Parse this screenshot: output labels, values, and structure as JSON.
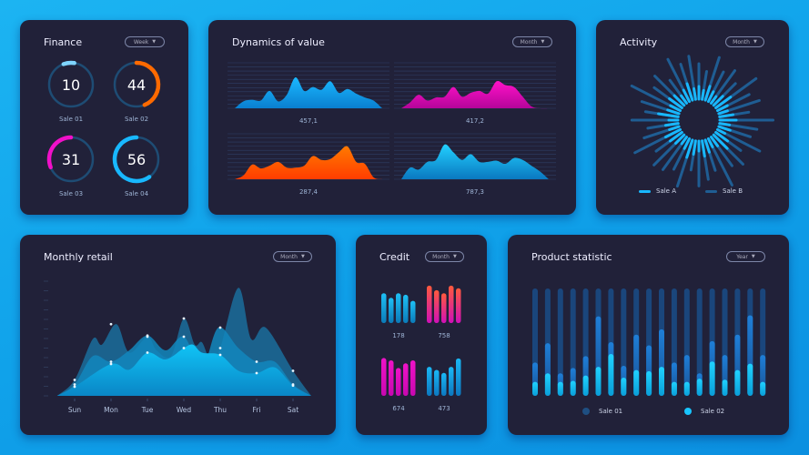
{
  "colors": {
    "panel": "#212139",
    "blue": "#18c5ff",
    "orange": "#ff6a00",
    "magenta": "#f010c8",
    "light_blue": "#7fd4ff",
    "dim_blue": "#1f5d93"
  },
  "finance": {
    "title": "Finance",
    "dropdown": "Week",
    "rings": [
      {
        "value": "10",
        "label": "Sale 01",
        "percent": 8,
        "color": "#7fd4ff",
        "dir": 1,
        "start": -20
      },
      {
        "value": "44",
        "label": "Sale 02",
        "percent": 44,
        "color": "#ff6a00",
        "dir": 1,
        "start": 0
      },
      {
        "value": "31",
        "label": "Sale 03",
        "percent": 31,
        "color": "#f010c8",
        "dir": -1,
        "start": 0
      },
      {
        "value": "56",
        "label": "Sale 04",
        "percent": 60,
        "color": "#18b8ff",
        "dir": -1,
        "start": 0
      }
    ]
  },
  "dynamics": {
    "title": "Dynamics of value",
    "dropdown": "Month",
    "charts": [
      {
        "value": "457,1",
        "colors": [
          "#1ab8ff",
          "#0a7fd0"
        ],
        "values": [
          0,
          18,
          22,
          20,
          45,
          18,
          35,
          80,
          45,
          55,
          48,
          70,
          40,
          50,
          38,
          28,
          20,
          0
        ]
      },
      {
        "value": "417,2",
        "colors": [
          "#ff12c8",
          "#b4059a"
        ],
        "values": [
          0,
          15,
          35,
          20,
          28,
          30,
          55,
          30,
          40,
          45,
          38,
          70,
          60,
          55,
          30,
          5,
          0,
          0
        ]
      },
      {
        "value": "287,4",
        "colors": [
          "#ff7a00",
          "#ff3d00"
        ],
        "values": [
          0,
          10,
          38,
          28,
          35,
          45,
          30,
          30,
          35,
          60,
          50,
          52,
          70,
          85,
          45,
          40,
          5,
          0
        ]
      },
      {
        "value": "787,3",
        "colors": [
          "#22d0ff",
          "#0a78c0"
        ],
        "values": [
          0,
          30,
          25,
          45,
          50,
          90,
          70,
          50,
          65,
          45,
          45,
          48,
          40,
          55,
          50,
          35,
          20,
          0
        ]
      }
    ]
  },
  "activity": {
    "title": "Activity",
    "dropdown": "Month",
    "legend": [
      {
        "label": "Sale A",
        "color": "#18b8ff"
      },
      {
        "label": "Sale B",
        "color": "#1f5d93"
      }
    ],
    "sale_a": [
      14,
      10,
      16,
      12,
      9,
      14,
      20,
      12,
      10,
      15,
      18,
      11,
      13,
      9,
      16,
      21,
      12,
      10,
      14,
      17,
      11,
      15,
      20,
      12,
      9,
      13,
      16,
      18,
      11,
      14,
      10,
      22,
      13,
      12,
      17,
      15,
      10,
      14,
      19,
      12
    ],
    "sale_b": [
      30,
      24,
      38,
      28,
      34,
      26,
      42,
      30,
      36,
      25,
      45,
      32,
      28,
      40,
      26,
      35,
      30,
      44,
      27,
      33,
      38,
      25,
      41,
      29,
      34,
      36,
      27,
      43,
      31,
      26,
      39,
      28,
      33,
      46,
      29,
      35,
      24,
      40,
      32,
      37
    ]
  },
  "monthly": {
    "title": "Monthly retail",
    "dropdown": "Month",
    "days": [
      "Sun",
      "Mon",
      "Tue",
      "Wed",
      "Thu",
      "Fri",
      "Sat"
    ],
    "series": [
      {
        "color": "#1a6d9c",
        "points": [
          [
            -0.48,
            0
          ],
          [
            0,
            14
          ],
          [
            0.5,
            50
          ],
          [
            0.75,
            45
          ],
          [
            1.15,
            63
          ],
          [
            1.5,
            38
          ],
          [
            2,
            52
          ],
          [
            2.25,
            40
          ],
          [
            2.65,
            35
          ],
          [
            3,
            68
          ],
          [
            3.3,
            45
          ],
          [
            3.5,
            47
          ],
          [
            3.75,
            30
          ],
          [
            4,
            42
          ],
          [
            4.5,
            95
          ],
          [
            4.85,
            50
          ],
          [
            5.25,
            60
          ],
          [
            6,
            22
          ],
          [
            6.5,
            0
          ]
        ]
      },
      {
        "color": "#1287bd",
        "points": [
          [
            -0.48,
            0
          ],
          [
            0,
            10
          ],
          [
            0.5,
            35
          ],
          [
            1,
            30
          ],
          [
            1.5,
            40
          ],
          [
            2,
            53
          ],
          [
            2.5,
            40
          ],
          [
            3,
            52
          ],
          [
            3.5,
            25
          ],
          [
            3.95,
            60
          ],
          [
            4.5,
            42
          ],
          [
            5,
            30
          ],
          [
            5.5,
            30
          ],
          [
            6,
            10
          ],
          [
            6.5,
            0
          ]
        ]
      },
      {
        "color": "#10c4f6",
        "points": [
          [
            -0.48,
            0
          ],
          [
            0,
            8
          ],
          [
            1,
            28
          ],
          [
            1.5,
            23
          ],
          [
            2,
            38
          ],
          [
            2.5,
            32
          ],
          [
            3,
            42
          ],
          [
            3.25,
            45
          ],
          [
            3.5,
            38
          ],
          [
            4,
            36
          ],
          [
            4.5,
            22
          ],
          [
            5,
            20
          ],
          [
            5.5,
            25
          ],
          [
            6,
            9
          ],
          [
            6.5,
            0
          ]
        ]
      }
    ]
  },
  "credit": {
    "title": "Credit",
    "dropdown": "Month",
    "groups": [
      {
        "value": "178",
        "colors": [
          "#1ec0f5",
          "#0b7ab8"
        ],
        "bars": [
          0.78,
          0.66,
          0.78,
          0.74,
          0.58
        ]
      },
      {
        "value": "758",
        "colors": [
          "#ff5a3c",
          "#d010b8"
        ],
        "bars": [
          0.98,
          0.86,
          0.78,
          0.98,
          0.91
        ]
      },
      {
        "value": "674",
        "colors": [
          "#f012c8",
          "#c808b0"
        ],
        "bars": [
          0.99,
          0.93,
          0.73,
          0.85,
          0.93
        ]
      },
      {
        "value": "473",
        "colors": [
          "#1ab8f5",
          "#0c78c0"
        ],
        "bars": [
          0.76,
          0.68,
          0.6,
          0.76,
          0.98
        ]
      }
    ]
  },
  "product": {
    "title": "Product statistic",
    "dropdown": "Year",
    "legend": [
      {
        "label": "Sale 01",
        "color": "#1f4f82"
      },
      {
        "label": "Sale 02",
        "color": "#18c5ff"
      }
    ],
    "sale_01": [
      31,
      49,
      21,
      26,
      37,
      74,
      50,
      28,
      57,
      47,
      62,
      31,
      38,
      21,
      51,
      38,
      57,
      75,
      38
    ],
    "sale_02": [
      13,
      21,
      13,
      14,
      19,
      27,
      39,
      17,
      24,
      23,
      27,
      13,
      13,
      16,
      32,
      15,
      24,
      30,
      13
    ]
  }
}
